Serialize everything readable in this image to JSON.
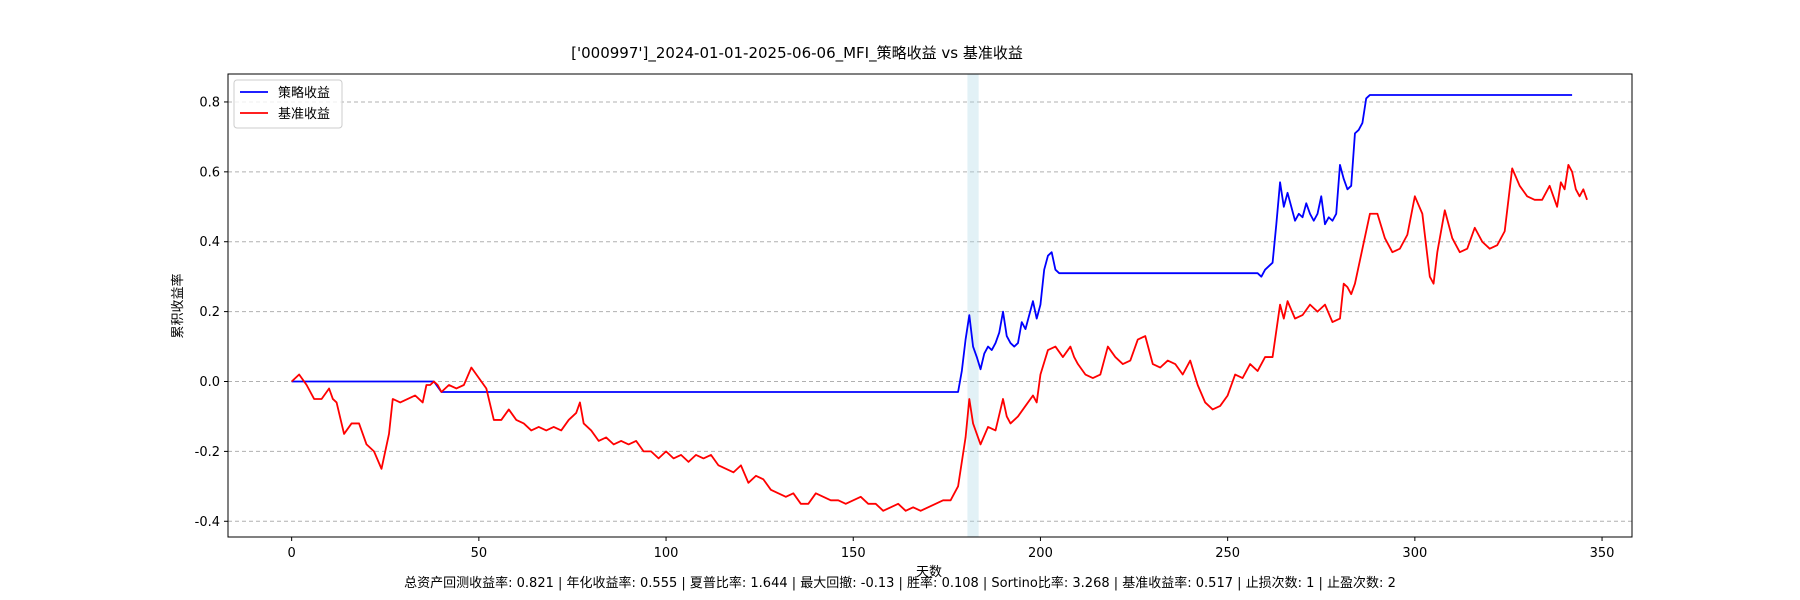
{
  "chart_data": {
    "type": "line",
    "title": "['000997']_2024-01-01-2025-06-06_MFI_策略收益 vs 基准收益",
    "xlabel": "天数",
    "ylabel": "累积收益率",
    "xlim": [
      -17,
      358
    ],
    "ylim": [
      -0.445,
      0.88
    ],
    "xticks": [
      0,
      50,
      100,
      150,
      200,
      250,
      300,
      350
    ],
    "yticks": [
      -0.4,
      -0.2,
      0.0,
      0.2,
      0.4,
      0.6,
      0.8
    ],
    "ytick_labels": [
      "-0.4",
      "-0.2",
      "0.0",
      "0.2",
      "0.4",
      "0.6",
      "0.8"
    ],
    "grid": "y-dashed",
    "legend": "top-left",
    "highlight_span": [
      180.5,
      183.5
    ],
    "series": [
      {
        "name": "策略收益",
        "color": "#0000ff",
        "points": [
          [
            0,
            0
          ],
          [
            38,
            0
          ],
          [
            40,
            -0.03
          ],
          [
            178,
            -0.03
          ],
          [
            179,
            0.03
          ],
          [
            180,
            0.12
          ],
          [
            181,
            0.19
          ],
          [
            182,
            0.1
          ],
          [
            183,
            0.07
          ],
          [
            184,
            0.035
          ],
          [
            185,
            0.08
          ],
          [
            186,
            0.1
          ],
          [
            187,
            0.09
          ],
          [
            188,
            0.11
          ],
          [
            189,
            0.14
          ],
          [
            190,
            0.2
          ],
          [
            191,
            0.13
          ],
          [
            192,
            0.11
          ],
          [
            193,
            0.1
          ],
          [
            194,
            0.11
          ],
          [
            195,
            0.17
          ],
          [
            196,
            0.15
          ],
          [
            197,
            0.19
          ],
          [
            198,
            0.23
          ],
          [
            199,
            0.18
          ],
          [
            200,
            0.22
          ],
          [
            201,
            0.32
          ],
          [
            202,
            0.36
          ],
          [
            203,
            0.37
          ],
          [
            204,
            0.32
          ],
          [
            205,
            0.31
          ],
          [
            258,
            0.31
          ],
          [
            259,
            0.3
          ],
          [
            260,
            0.32
          ],
          [
            261,
            0.33
          ],
          [
            262,
            0.34
          ],
          [
            263,
            0.45
          ],
          [
            264,
            0.57
          ],
          [
            265,
            0.5
          ],
          [
            266,
            0.54
          ],
          [
            267,
            0.5
          ],
          [
            268,
            0.46
          ],
          [
            269,
            0.48
          ],
          [
            270,
            0.47
          ],
          [
            271,
            0.51
          ],
          [
            272,
            0.48
          ],
          [
            273,
            0.46
          ],
          [
            274,
            0.48
          ],
          [
            275,
            0.53
          ],
          [
            276,
            0.45
          ],
          [
            277,
            0.47
          ],
          [
            278,
            0.46
          ],
          [
            279,
            0.48
          ],
          [
            280,
            0.62
          ],
          [
            281,
            0.58
          ],
          [
            282,
            0.55
          ],
          [
            283,
            0.56
          ],
          [
            284,
            0.71
          ],
          [
            285,
            0.72
          ],
          [
            286,
            0.74
          ],
          [
            287,
            0.81
          ],
          [
            288,
            0.82
          ],
          [
            342,
            0.82
          ]
        ]
      },
      {
        "name": "基准收益",
        "color": "#ff0000",
        "points": [
          [
            0,
            0
          ],
          [
            2,
            0.02
          ],
          [
            4,
            -0.01
          ],
          [
            6,
            -0.05
          ],
          [
            8,
            -0.05
          ],
          [
            10,
            -0.02
          ],
          [
            11,
            -0.05
          ],
          [
            12,
            -0.06
          ],
          [
            14,
            -0.15
          ],
          [
            16,
            -0.12
          ],
          [
            18,
            -0.12
          ],
          [
            20,
            -0.18
          ],
          [
            22,
            -0.2
          ],
          [
            24,
            -0.25
          ],
          [
            26,
            -0.15
          ],
          [
            27,
            -0.05
          ],
          [
            29,
            -0.06
          ],
          [
            31,
            -0.05
          ],
          [
            33,
            -0.04
          ],
          [
            35,
            -0.06
          ],
          [
            36,
            -0.01
          ],
          [
            37,
            -0.01
          ],
          [
            38,
            0
          ],
          [
            39,
            -0.01
          ],
          [
            40,
            -0.03
          ],
          [
            42,
            -0.01
          ],
          [
            44,
            -0.02
          ],
          [
            46,
            -0.01
          ],
          [
            48,
            0.04
          ],
          [
            50,
            0.01
          ],
          [
            52,
            -0.02
          ],
          [
            54,
            -0.11
          ],
          [
            56,
            -0.11
          ],
          [
            58,
            -0.08
          ],
          [
            60,
            -0.11
          ],
          [
            62,
            -0.12
          ],
          [
            64,
            -0.14
          ],
          [
            66,
            -0.13
          ],
          [
            68,
            -0.14
          ],
          [
            70,
            -0.13
          ],
          [
            72,
            -0.14
          ],
          [
            74,
            -0.11
          ],
          [
            76,
            -0.09
          ],
          [
            77,
            -0.06
          ],
          [
            78,
            -0.12
          ],
          [
            80,
            -0.14
          ],
          [
            82,
            -0.17
          ],
          [
            84,
            -0.16
          ],
          [
            86,
            -0.18
          ],
          [
            88,
            -0.17
          ],
          [
            90,
            -0.18
          ],
          [
            92,
            -0.17
          ],
          [
            94,
            -0.2
          ],
          [
            96,
            -0.2
          ],
          [
            98,
            -0.22
          ],
          [
            100,
            -0.2
          ],
          [
            102,
            -0.22
          ],
          [
            104,
            -0.21
          ],
          [
            106,
            -0.23
          ],
          [
            108,
            -0.21
          ],
          [
            110,
            -0.22
          ],
          [
            112,
            -0.21
          ],
          [
            114,
            -0.24
          ],
          [
            116,
            -0.25
          ],
          [
            118,
            -0.26
          ],
          [
            120,
            -0.24
          ],
          [
            122,
            -0.29
          ],
          [
            124,
            -0.27
          ],
          [
            126,
            -0.28
          ],
          [
            128,
            -0.31
          ],
          [
            130,
            -0.32
          ],
          [
            132,
            -0.33
          ],
          [
            134,
            -0.32
          ],
          [
            136,
            -0.35
          ],
          [
            138,
            -0.35
          ],
          [
            140,
            -0.32
          ],
          [
            142,
            -0.33
          ],
          [
            144,
            -0.34
          ],
          [
            146,
            -0.34
          ],
          [
            148,
            -0.35
          ],
          [
            150,
            -0.34
          ],
          [
            152,
            -0.33
          ],
          [
            154,
            -0.35
          ],
          [
            156,
            -0.35
          ],
          [
            158,
            -0.37
          ],
          [
            160,
            -0.36
          ],
          [
            162,
            -0.35
          ],
          [
            164,
            -0.37
          ],
          [
            166,
            -0.36
          ],
          [
            168,
            -0.37
          ],
          [
            170,
            -0.36
          ],
          [
            172,
            -0.35
          ],
          [
            174,
            -0.34
          ],
          [
            176,
            -0.34
          ],
          [
            178,
            -0.3
          ],
          [
            180,
            -0.16
          ],
          [
            181,
            -0.05
          ],
          [
            182,
            -0.12
          ],
          [
            184,
            -0.18
          ],
          [
            186,
            -0.13
          ],
          [
            188,
            -0.14
          ],
          [
            190,
            -0.05
          ],
          [
            191,
            -0.1
          ],
          [
            192,
            -0.12
          ],
          [
            194,
            -0.1
          ],
          [
            196,
            -0.07
          ],
          [
            198,
            -0.04
          ],
          [
            199,
            -0.06
          ],
          [
            200,
            0.02
          ],
          [
            202,
            0.09
          ],
          [
            204,
            0.1
          ],
          [
            206,
            0.07
          ],
          [
            208,
            0.1
          ],
          [
            209,
            0.07
          ],
          [
            210,
            0.05
          ],
          [
            212,
            0.02
          ],
          [
            214,
            0.01
          ],
          [
            216,
            0.02
          ],
          [
            218,
            0.1
          ],
          [
            220,
            0.07
          ],
          [
            222,
            0.05
          ],
          [
            224,
            0.06
          ],
          [
            226,
            0.12
          ],
          [
            228,
            0.13
          ],
          [
            230,
            0.05
          ],
          [
            232,
            0.04
          ],
          [
            234,
            0.06
          ],
          [
            236,
            0.05
          ],
          [
            238,
            0.02
          ],
          [
            240,
            0.06
          ],
          [
            242,
            -0.01
          ],
          [
            244,
            -0.06
          ],
          [
            246,
            -0.08
          ],
          [
            248,
            -0.07
          ],
          [
            250,
            -0.04
          ],
          [
            252,
            0.02
          ],
          [
            254,
            0.01
          ],
          [
            256,
            0.05
          ],
          [
            258,
            0.03
          ],
          [
            260,
            0.07
          ],
          [
            262,
            0.07
          ],
          [
            264,
            0.22
          ],
          [
            265,
            0.18
          ],
          [
            266,
            0.23
          ],
          [
            268,
            0.18
          ],
          [
            270,
            0.19
          ],
          [
            272,
            0.22
          ],
          [
            274,
            0.2
          ],
          [
            276,
            0.22
          ],
          [
            278,
            0.17
          ],
          [
            280,
            0.18
          ],
          [
            281,
            0.28
          ],
          [
            282,
            0.27
          ],
          [
            283,
            0.25
          ],
          [
            284,
            0.28
          ],
          [
            286,
            0.38
          ],
          [
            288,
            0.48
          ],
          [
            290,
            0.48
          ],
          [
            292,
            0.41
          ],
          [
            294,
            0.37
          ],
          [
            296,
            0.38
          ],
          [
            298,
            0.42
          ],
          [
            300,
            0.53
          ],
          [
            302,
            0.48
          ],
          [
            304,
            0.3
          ],
          [
            305,
            0.28
          ],
          [
            306,
            0.37
          ],
          [
            308,
            0.49
          ],
          [
            310,
            0.41
          ],
          [
            312,
            0.37
          ],
          [
            314,
            0.38
          ],
          [
            316,
            0.44
          ],
          [
            318,
            0.4
          ],
          [
            320,
            0.38
          ],
          [
            322,
            0.39
          ],
          [
            324,
            0.43
          ],
          [
            326,
            0.61
          ],
          [
            328,
            0.56
          ],
          [
            330,
            0.53
          ],
          [
            332,
            0.52
          ],
          [
            334,
            0.52
          ],
          [
            336,
            0.56
          ],
          [
            338,
            0.5
          ],
          [
            339,
            0.57
          ],
          [
            340,
            0.55
          ],
          [
            341,
            0.62
          ],
          [
            342,
            0.6
          ],
          [
            343,
            0.55
          ],
          [
            344,
            0.53
          ],
          [
            345,
            0.55
          ],
          [
            346,
            0.52
          ]
        ]
      }
    ]
  },
  "footer": {
    "metrics": "总资产回测收益率: 0.821 | 年化收益率: 0.555 | 夏普比率: 1.644 | 最大回撤: -0.13 | 胜率: 0.108 | Sortino比率: 3.268 | 基准收益率: 0.517 | 止损次数: 1 | 止盈次数: 2"
  }
}
